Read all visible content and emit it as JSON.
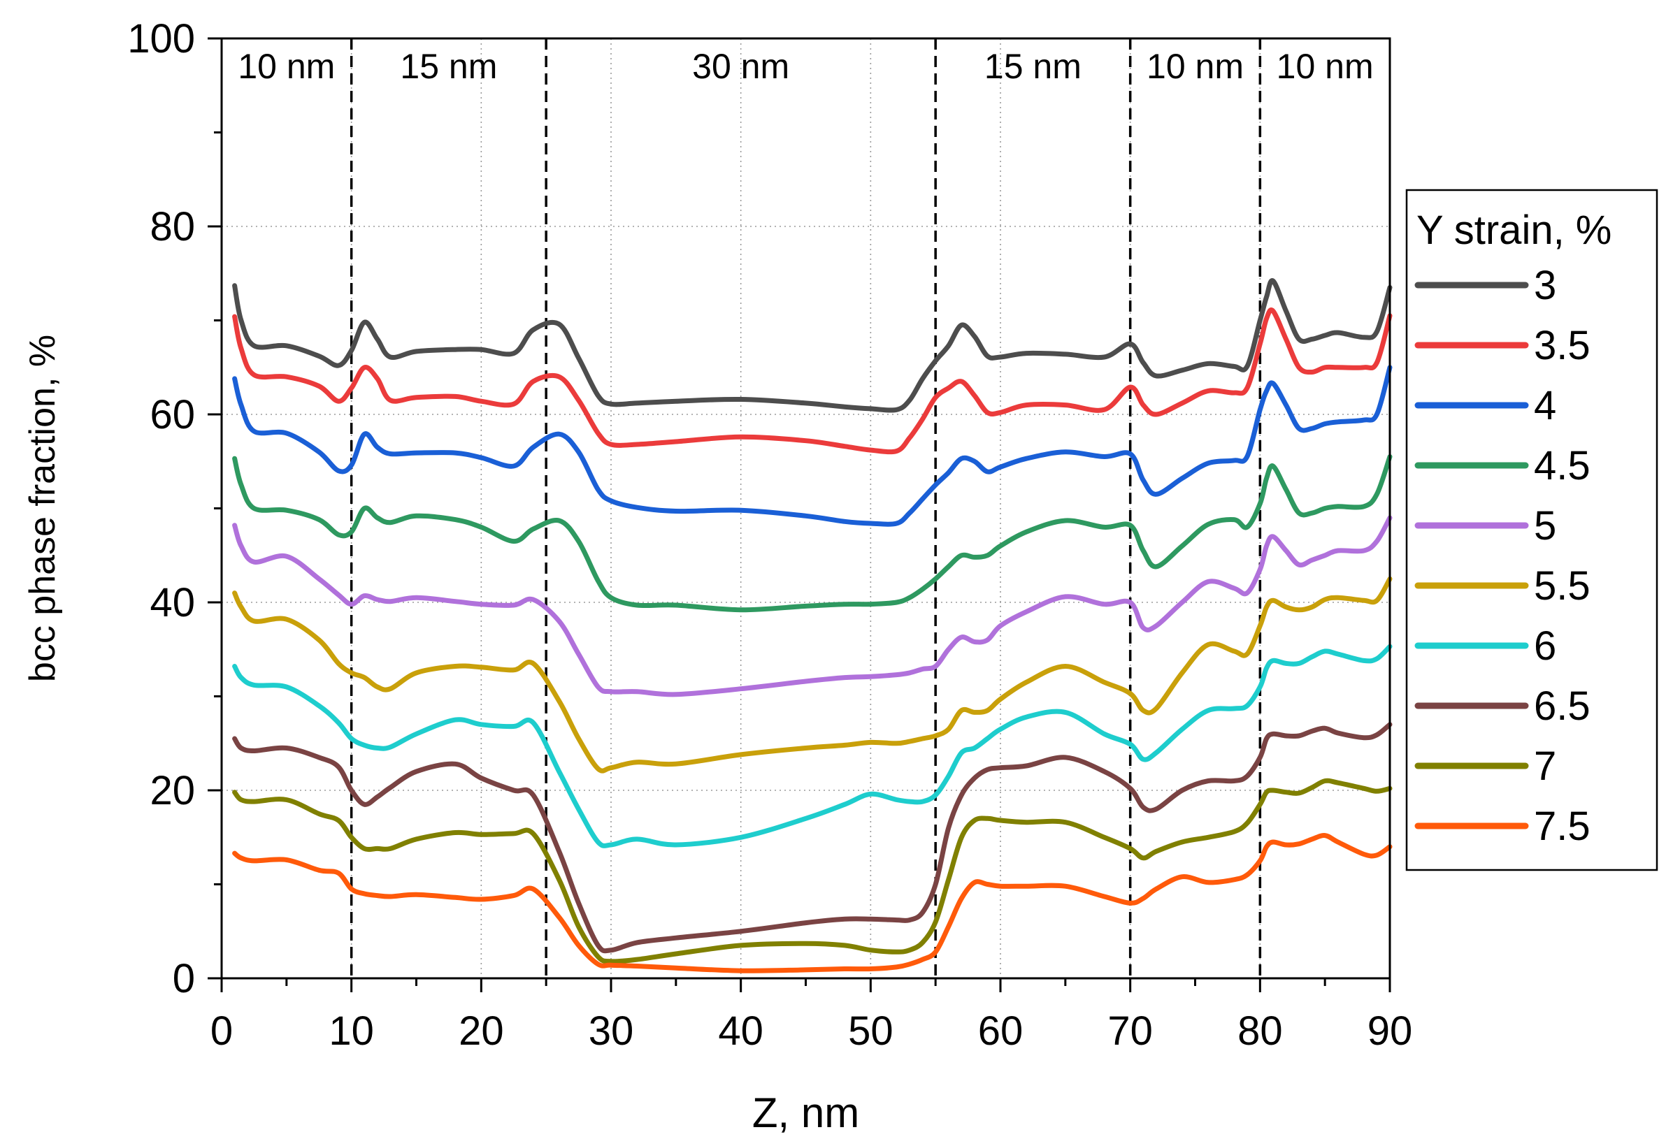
{
  "chart_data": {
    "type": "line",
    "title": "",
    "xlabel": "Z, nm",
    "ylabel": "bcc phase fraction, %",
    "xlim": [
      0,
      90
    ],
    "ylim": [
      0,
      100
    ],
    "x_ticks": [
      "0",
      "10",
      "20",
      "30",
      "40",
      "50",
      "60",
      "70",
      "80",
      "90"
    ],
    "y_ticks": [
      "0",
      "20",
      "40",
      "60",
      "80",
      "100"
    ],
    "grid": true,
    "legend_title": "Y strain, %",
    "legend_position": "right",
    "region_boundaries": [
      10,
      25,
      55,
      70,
      80
    ],
    "region_labels": [
      {
        "text": "10 nm",
        "center": 5
      },
      {
        "text": "15 nm",
        "center": 17.5
      },
      {
        "text": "30 nm",
        "center": 40
      },
      {
        "text": "15 nm",
        "center": 62.5
      },
      {
        "text": "10 nm",
        "center": 75
      },
      {
        "text": "10 nm",
        "center": 85
      }
    ],
    "x": [
      1,
      1.5,
      2.5,
      5,
      7.5,
      9,
      10,
      11,
      12,
      13,
      15,
      18,
      20,
      22.5,
      24,
      26,
      27.5,
      29,
      30,
      32,
      35,
      40,
      45,
      48,
      50,
      52,
      53,
      54,
      55,
      56,
      57,
      58,
      59,
      60,
      62,
      65,
      68,
      70,
      71,
      72,
      74,
      76,
      78,
      79,
      80,
      80.5,
      81,
      82,
      83,
      84,
      85,
      86,
      88,
      89,
      90
    ],
    "series": [
      {
        "name": "3",
        "color": "#4d4d4d",
        "values": [
          73.7,
          70,
          67.3,
          67.3,
          66.2,
          65.2,
          66.8,
          69.8,
          68,
          66.1,
          66.7,
          66.9,
          66.9,
          66.5,
          69,
          69.6,
          66,
          62,
          61.1,
          61.2,
          61.4,
          61.6,
          61.2,
          60.8,
          60.6,
          60.5,
          61.5,
          63.8,
          65.7,
          67.3,
          69.5,
          68.3,
          66.2,
          66.1,
          66.5,
          66.4,
          66.1,
          67.5,
          65.5,
          64.1,
          64.7,
          65.4,
          65.1,
          65.1,
          70,
          72.5,
          74.2,
          71,
          68,
          68,
          68.4,
          68.7,
          68.2,
          68.8,
          73.5
        ]
      },
      {
        "name": "3.5",
        "color": "#eb3b3b",
        "values": [
          70.4,
          67,
          64.2,
          64,
          63,
          61.4,
          62.8,
          65,
          63.8,
          61.5,
          61.8,
          61.9,
          61.4,
          61.1,
          63.5,
          64,
          61.5,
          58,
          56.8,
          56.8,
          57.1,
          57.6,
          57.2,
          56.6,
          56.2,
          56.1,
          57.5,
          59.5,
          61.8,
          62.8,
          63.5,
          62,
          60.2,
          60.2,
          61,
          61,
          60.5,
          62.9,
          61,
          60,
          61.2,
          62.5,
          62.3,
          62.8,
          67.5,
          70.2,
          71,
          68,
          65,
          64.5,
          65,
          65,
          65,
          65.5,
          70.5
        ]
      },
      {
        "name": "4",
        "color": "#1a5fd6",
        "values": [
          63.8,
          61,
          58.2,
          58,
          56,
          54,
          54.6,
          57.9,
          56.5,
          55.8,
          55.9,
          55.9,
          55.4,
          54.5,
          56.5,
          57.9,
          56,
          52,
          50.8,
          50.1,
          49.7,
          49.8,
          49.2,
          48.6,
          48.4,
          48.4,
          49.5,
          51,
          52.5,
          53.8,
          55.3,
          55,
          53.9,
          54.4,
          55.3,
          56,
          55.5,
          55.8,
          53,
          51.5,
          53.2,
          54.8,
          55.1,
          55.5,
          60.5,
          62.5,
          63.3,
          61,
          58.5,
          58.5,
          59,
          59.2,
          59.4,
          60,
          65
        ]
      },
      {
        "name": "4.5",
        "color": "#2e9960",
        "values": [
          55.3,
          52.5,
          50,
          49.8,
          48.8,
          47.2,
          47.5,
          50,
          49,
          48.5,
          49.2,
          48.8,
          48,
          46.5,
          47.8,
          48.7,
          46.5,
          42.3,
          40.5,
          39.7,
          39.7,
          39.2,
          39.6,
          39.8,
          39.8,
          40,
          40.5,
          41.4,
          42.5,
          43.8,
          45,
          44.8,
          45,
          46,
          47.5,
          48.7,
          48,
          48.2,
          45.5,
          43.8,
          46,
          48.3,
          48.8,
          48,
          50.5,
          53.2,
          54.5,
          52,
          49.5,
          49.5,
          50,
          50.2,
          50.2,
          51.5,
          55.5
        ]
      },
      {
        "name": "5",
        "color": "#b071db",
        "values": [
          48.2,
          46,
          44.3,
          44.9,
          42.5,
          40.8,
          39.8,
          40.7,
          40.3,
          40.1,
          40.5,
          40.1,
          39.8,
          39.7,
          40.3,
          38,
          34.5,
          31,
          30.5,
          30.5,
          30.2,
          30.8,
          31.6,
          32,
          32.1,
          32.3,
          32.5,
          32.9,
          33.2,
          35,
          36.3,
          35.8,
          36,
          37.5,
          39,
          40.6,
          39.8,
          40,
          37.3,
          37.5,
          40,
          42.2,
          41.5,
          41,
          43.5,
          46,
          47,
          45.5,
          44,
          44.5,
          45,
          45.5,
          45.5,
          46.5,
          49
        ]
      },
      {
        "name": "5.5",
        "color": "#c9a00a",
        "values": [
          41,
          39.5,
          38,
          38.2,
          36,
          33.5,
          32.5,
          32,
          31,
          30.8,
          32.5,
          33.2,
          33.1,
          32.8,
          33.5,
          29.5,
          25.5,
          22.3,
          22.4,
          23,
          22.8,
          23.8,
          24.5,
          24.8,
          25.1,
          25,
          25.2,
          25.5,
          25.8,
          26.5,
          28.5,
          28.3,
          28.5,
          29.7,
          31.5,
          33.2,
          31.5,
          30.3,
          28.5,
          28.7,
          32.5,
          35.5,
          34.8,
          34.5,
          37.5,
          39.5,
          40.2,
          39.5,
          39.2,
          39.5,
          40.3,
          40.5,
          40.2,
          40.2,
          42.5
        ]
      },
      {
        "name": "6",
        "color": "#1ecdcd",
        "values": [
          33.2,
          32,
          31.2,
          31,
          29,
          27.2,
          25.5,
          24.8,
          24.5,
          24.6,
          26,
          27.5,
          27,
          26.8,
          27.2,
          22,
          18,
          14.5,
          14.2,
          14.8,
          14.2,
          15,
          17,
          18.5,
          19.6,
          19,
          18.8,
          18.8,
          19.5,
          21.5,
          24,
          24.5,
          25.5,
          26.5,
          27.8,
          28.3,
          26,
          24.9,
          23.3,
          24,
          26.5,
          28.5,
          28.7,
          29,
          31,
          33,
          33.8,
          33.5,
          33.5,
          34.2,
          34.8,
          34.5,
          33.8,
          34,
          35.3
        ]
      },
      {
        "name": "6.5",
        "color": "#7a4343",
        "values": [
          25.5,
          24.5,
          24.2,
          24.5,
          23.5,
          22.5,
          20,
          18.5,
          19.3,
          20.3,
          22,
          22.8,
          21.3,
          20,
          19.5,
          13.5,
          8,
          3.5,
          3,
          3.8,
          4.3,
          5,
          5.9,
          6.3,
          6.3,
          6.2,
          6.2,
          7,
          10,
          16,
          19.5,
          21.3,
          22.2,
          22.4,
          22.6,
          23.5,
          22,
          20.2,
          18.2,
          18,
          20,
          21,
          21,
          21.5,
          23.5,
          25.5,
          26,
          25.8,
          25.8,
          26.3,
          26.6,
          26.1,
          25.6,
          25.9,
          27
        ]
      },
      {
        "name": "7",
        "color": "#808000",
        "values": [
          19.8,
          19,
          18.8,
          19,
          17.5,
          16.8,
          15,
          13.8,
          13.8,
          13.8,
          14.8,
          15.5,
          15.3,
          15.4,
          15.4,
          10.5,
          5.5,
          2.3,
          1.8,
          2,
          2.6,
          3.5,
          3.7,
          3.5,
          3,
          2.8,
          3,
          3.8,
          6,
          10.5,
          15,
          16.8,
          17,
          16.8,
          16.6,
          16.6,
          15,
          13.8,
          12.8,
          13.5,
          14.5,
          15,
          15.6,
          16.5,
          18.5,
          19.8,
          20,
          19.8,
          19.7,
          20.3,
          21,
          20.8,
          20.2,
          19.9,
          20.2
        ]
      },
      {
        "name": "7.5",
        "color": "#ff5a0a",
        "values": [
          13.3,
          12.8,
          12.5,
          12.6,
          11.5,
          11.2,
          9.5,
          9,
          8.8,
          8.7,
          8.9,
          8.6,
          8.4,
          8.8,
          9.5,
          6.5,
          3.5,
          1.5,
          1.4,
          1.3,
          1.1,
          0.8,
          0.9,
          1,
          1,
          1.2,
          1.5,
          2,
          2.8,
          5.5,
          8.5,
          10.2,
          10,
          9.8,
          9.8,
          9.8,
          8.7,
          8,
          8.5,
          9.5,
          10.8,
          10.2,
          10.5,
          11,
          12.5,
          14,
          14.5,
          14.2,
          14.3,
          14.8,
          15.2,
          14.5,
          13.2,
          13.1,
          14
        ]
      }
    ]
  }
}
